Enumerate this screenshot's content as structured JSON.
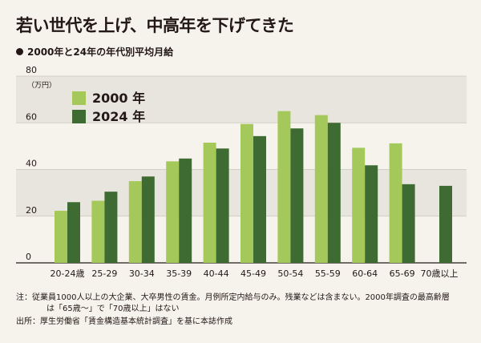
{
  "title": "若い世代を上げ、中高年を下げてきた",
  "subtitle": "2000年と24年の年代別平均月給",
  "colors": {
    "series_2000": "#a5c85a",
    "series_2024": "#3d6b32",
    "band": "#e7e5dd",
    "grid": "#c9c6bc"
  },
  "chart_data": {
    "type": "bar",
    "title": "2000年と24年の年代別平均月給",
    "ylabel": "（万円）",
    "xlabel": "",
    "ylim": [
      0,
      80
    ],
    "yticks": [
      0,
      20,
      40,
      60,
      80
    ],
    "grid": true,
    "legend_position": "top-left",
    "categories": [
      "20-24歳",
      "25-29",
      "30-34",
      "35-39",
      "40-44",
      "45-49",
      "50-54",
      "55-59",
      "60-64",
      "65-69",
      "70歳以上"
    ],
    "series": [
      {
        "name": "2000 年",
        "values": [
          22.3,
          26.6,
          35.0,
          43.5,
          51.5,
          59.5,
          65.0,
          63.3,
          49.3,
          51.2,
          null
        ]
      },
      {
        "name": "2024 年",
        "values": [
          26.0,
          30.5,
          37.0,
          44.7,
          49.0,
          54.3,
          57.6,
          60.0,
          41.8,
          33.7,
          33.0
        ]
      }
    ]
  },
  "notes": {
    "line1": "注：従業員1000人以上の大企業、大卒男性の賃金。月例所定内給与のみ。残業などは含まない。2000年調査の最高齢層",
    "line2": "は「65歳～」で「70歳以上」はない",
    "source": "出所：厚生労働省「賃金構造基本統計調査」を基に本誌作成"
  }
}
